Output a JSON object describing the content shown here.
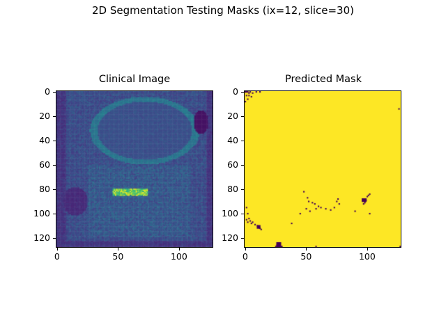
{
  "figure": {
    "suptitle": "2D Segmentation Testing Masks (ix=12, slice=30)"
  },
  "panels": [
    {
      "title": "Clinical Image",
      "y_ticks": [
        "0",
        "20",
        "40",
        "60",
        "80",
        "100",
        "120"
      ],
      "x_ticks": [
        "0",
        "50",
        "100"
      ],
      "colormap": "viridis",
      "colors": {
        "low": "#440154",
        "mid": "#31688e",
        "high": "#fde725"
      }
    },
    {
      "title": "Predicted Mask",
      "y_ticks": [
        "0",
        "20",
        "40",
        "60",
        "80",
        "100",
        "120"
      ],
      "x_ticks": [
        "0",
        "50",
        "100"
      ],
      "colormap": "viridis-binary",
      "colors": {
        "foreground": "#fde725",
        "background": "#440154"
      }
    }
  ]
}
